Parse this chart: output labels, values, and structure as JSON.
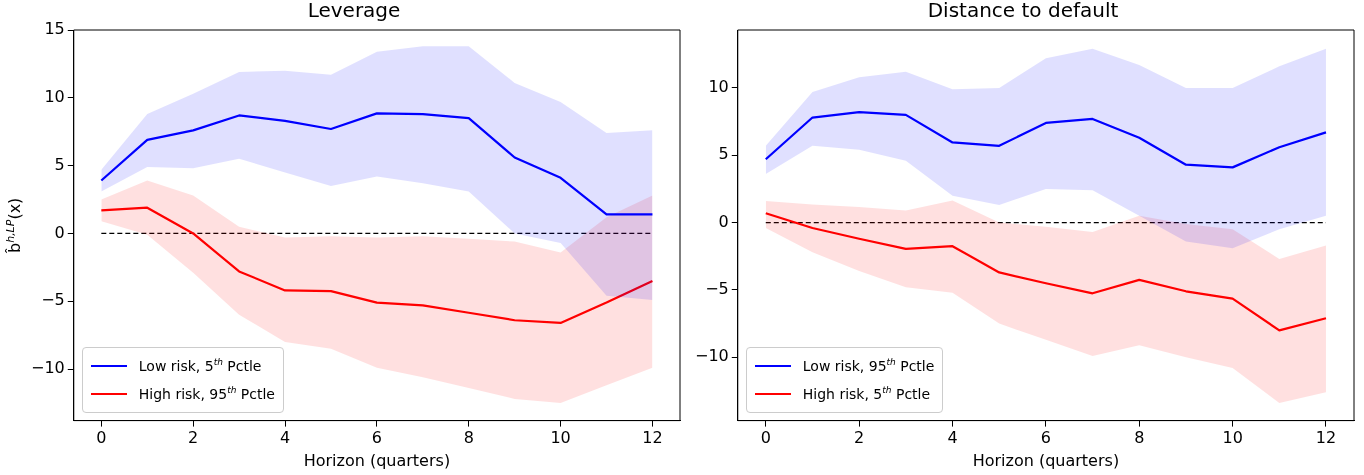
{
  "chart_data": [
    {
      "type": "line",
      "title": "Leverage",
      "xlabel": "Horizon (quarters)",
      "ylabel": "b̂$^{h,LP}$(x)",
      "x": [
        0,
        1,
        2,
        3,
        4,
        5,
        6,
        7,
        8,
        9,
        10,
        11,
        12
      ],
      "xlim": [
        -0.6,
        12.6
      ],
      "xticks": [
        0,
        2,
        4,
        6,
        8,
        10,
        12
      ],
      "ylim": [
        -13.8,
        15
      ],
      "yticks": [
        -10,
        -5,
        0,
        5,
        10,
        15
      ],
      "grid": false,
      "legend": "bottom left",
      "marker": "none",
      "series": [
        {
          "name": "Low risk, 5$^{th}$ Pctle",
          "color": "#0000ff",
          "values": [
            3.9,
            6.9,
            7.6,
            8.7,
            8.3,
            7.7,
            8.85,
            8.8,
            8.5,
            5.6,
            4.1,
            1.4,
            1.4
          ],
          "lower": [
            3.1,
            4.9,
            4.8,
            5.5,
            4.5,
            3.5,
            4.2,
            3.7,
            3.1,
            0.0,
            -0.7,
            -4.6,
            -4.9
          ],
          "upper": [
            4.7,
            8.8,
            10.3,
            11.9,
            12.0,
            11.7,
            13.4,
            13.8,
            13.8,
            11.1,
            9.7,
            7.4,
            7.6
          ]
        },
        {
          "name": "High risk, 95$^{th}$ Pctle",
          "color": "#ff0000",
          "values": [
            1.7,
            1.9,
            0.0,
            -2.8,
            -4.2,
            -4.25,
            -5.1,
            -5.3,
            -5.85,
            -6.4,
            -6.6,
            -5.1,
            -3.5
          ],
          "lower": [
            0.9,
            -0.1,
            -2.9,
            -6.0,
            -8.0,
            -8.5,
            -9.9,
            -10.6,
            -11.4,
            -12.2,
            -12.5,
            -11.2,
            -9.9
          ],
          "upper": [
            2.5,
            3.9,
            2.8,
            0.5,
            -0.3,
            -0.2,
            -0.3,
            -0.2,
            -0.4,
            -0.6,
            -1.4,
            1.2,
            2.8
          ]
        },
        {
          "color": "#000000",
          "line_style": "dashed",
          "values": [
            0,
            0,
            0,
            0,
            0,
            0,
            0,
            0,
            0,
            0,
            0,
            0,
            0
          ]
        }
      ]
    },
    {
      "type": "line",
      "title": "Distance to default",
      "xlabel": "Horizon (quarters)",
      "x": [
        0,
        1,
        2,
        3,
        4,
        5,
        6,
        7,
        8,
        9,
        10,
        11,
        12
      ],
      "xlim": [
        -0.6,
        12.6
      ],
      "xticks": [
        0,
        2,
        4,
        6,
        8,
        10,
        12
      ],
      "ylim": [
        -14.7,
        14.3
      ],
      "yticks": [
        -10,
        -5,
        0,
        5,
        10
      ],
      "grid": false,
      "legend": "bottom left",
      "marker": "none",
      "series": [
        {
          "name": "Low risk, 95$^{th}$ Pctle",
          "color": "#0000ff",
          "values": [
            4.7,
            7.8,
            8.2,
            8.0,
            5.95,
            5.7,
            7.4,
            7.7,
            6.3,
            4.3,
            4.1,
            5.6,
            6.7
          ],
          "lower": [
            3.6,
            5.7,
            5.4,
            4.6,
            2.0,
            1.3,
            2.5,
            2.4,
            0.5,
            -1.4,
            -1.9,
            -0.5,
            0.5
          ],
          "upper": [
            5.7,
            9.7,
            10.8,
            11.2,
            9.9,
            10.0,
            12.2,
            12.9,
            11.7,
            10.0,
            10.0,
            11.6,
            12.9
          ]
        },
        {
          "name": "High risk, 5$^{th}$ Pctle",
          "color": "#ff0000",
          "values": [
            0.7,
            -0.4,
            -1.2,
            -1.95,
            -1.75,
            -3.7,
            -4.5,
            -5.25,
            -4.25,
            -5.1,
            -5.65,
            -8.0,
            -7.1
          ],
          "lower": [
            -0.4,
            -2.2,
            -3.6,
            -4.8,
            -5.2,
            -7.5,
            -8.7,
            -9.9,
            -9.1,
            -10.0,
            -10.8,
            -13.4,
            -12.6
          ],
          "upper": [
            1.6,
            1.35,
            1.15,
            0.9,
            1.65,
            0.0,
            -0.3,
            -0.7,
            0.5,
            -0.1,
            -0.5,
            -2.7,
            -1.7
          ]
        },
        {
          "color": "#000000",
          "line_style": "dashed",
          "values": [
            0,
            0,
            0,
            0,
            0,
            0,
            0,
            0,
            0,
            0,
            0,
            0,
            0
          ]
        }
      ]
    }
  ]
}
